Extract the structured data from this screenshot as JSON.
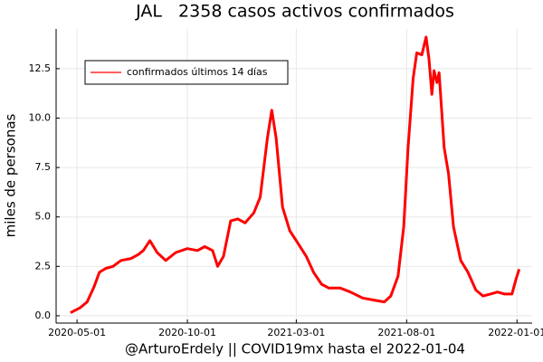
{
  "chart_data": {
    "type": "line",
    "title": "JAL   2358 casos activos confirmados",
    "xlabel": "@ArturoErdely || COVID19mx hasta el 2022-01-04",
    "ylabel": "miles de personas",
    "legend": "top-left",
    "grid": true,
    "x": [
      "2020-04-22",
      "2020-05-05",
      "2020-05-15",
      "2020-05-25",
      "2020-06-01",
      "2020-06-10",
      "2020-06-20",
      "2020-07-01",
      "2020-07-15",
      "2020-07-25",
      "2020-08-01",
      "2020-08-10",
      "2020-08-20",
      "2020-09-01",
      "2020-09-15",
      "2020-10-01",
      "2020-10-15",
      "2020-10-25",
      "2020-11-05",
      "2020-11-12",
      "2020-11-20",
      "2020-11-30",
      "2020-12-10",
      "2020-12-20",
      "2021-01-01",
      "2021-01-10",
      "2021-01-20",
      "2021-01-26",
      "2021-02-01",
      "2021-02-10",
      "2021-02-20",
      "2021-03-01",
      "2021-03-15",
      "2021-03-25",
      "2021-04-05",
      "2021-04-15",
      "2021-05-01",
      "2021-05-15",
      "2021-06-01",
      "2021-06-15",
      "2021-07-01",
      "2021-07-10",
      "2021-07-20",
      "2021-07-28",
      "2021-08-03",
      "2021-08-10",
      "2021-08-15",
      "2021-08-22",
      "2021-08-28",
      "2021-09-01",
      "2021-09-05",
      "2021-09-08",
      "2021-09-12",
      "2021-09-15",
      "2021-09-22",
      "2021-09-28",
      "2021-10-05",
      "2021-10-15",
      "2021-10-25",
      "2021-11-05",
      "2021-11-15",
      "2021-11-25",
      "2021-12-05",
      "2021-12-15",
      "2021-12-25",
      "2021-12-31",
      "2022-01-04"
    ],
    "series": [
      {
        "name": "confirmados últimos 14 días",
        "color": "#ff0000",
        "values": [
          0.15,
          0.4,
          0.7,
          1.5,
          2.2,
          2.4,
          2.5,
          2.8,
          2.9,
          3.1,
          3.3,
          3.8,
          3.2,
          2.8,
          3.2,
          3.4,
          3.3,
          3.5,
          3.3,
          2.5,
          3.0,
          4.8,
          4.9,
          4.7,
          5.2,
          6.0,
          9.0,
          10.4,
          9.0,
          5.5,
          4.3,
          3.8,
          3.0,
          2.2,
          1.6,
          1.4,
          1.4,
          1.2,
          0.9,
          0.8,
          0.7,
          1.0,
          2.0,
          4.5,
          8.5,
          12.0,
          13.3,
          13.2,
          14.1,
          13.0,
          11.2,
          12.4,
          11.8,
          12.3,
          8.5,
          7.2,
          4.5,
          2.8,
          2.2,
          1.3,
          1.0,
          1.1,
          1.2,
          1.1,
          1.1,
          1.9,
          2.36
        ]
      }
    ],
    "xlim": [
      "2020-04-02",
      "2022-01-22"
    ],
    "xticks": [
      "2020-05-01",
      "2020-10-01",
      "2021-03-01",
      "2021-08-01",
      "2022-01-01"
    ],
    "ylim": [
      -0.37,
      14.51
    ],
    "yticks": [
      {
        "value": 0,
        "label": "0.0"
      },
      {
        "value": 2.5,
        "label": "2.5"
      },
      {
        "value": 5,
        "label": "5.0"
      },
      {
        "value": 7.5,
        "label": "7.5"
      },
      {
        "value": 10,
        "label": "10.0"
      },
      {
        "value": 12.5,
        "label": "12.5"
      }
    ]
  }
}
